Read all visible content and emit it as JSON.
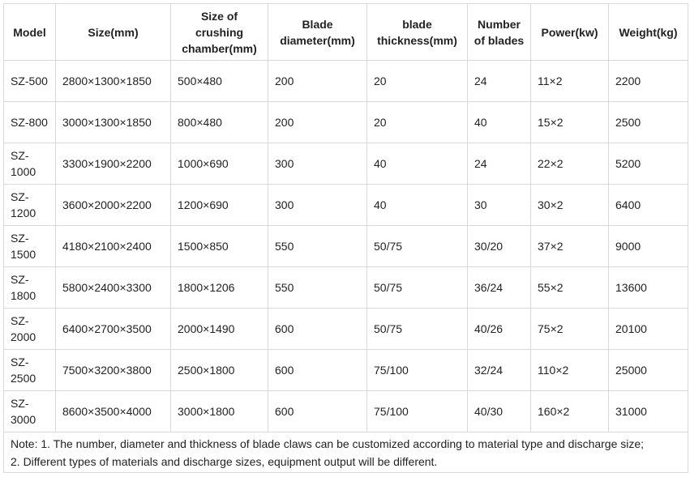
{
  "table": {
    "headers": [
      "Model",
      "Size(mm)",
      "Size of crushing chamber(mm)",
      "Blade diameter(mm)",
      "blade thickness(mm)",
      "Number of blades",
      "Power(kw)",
      "Weight(kg)"
    ],
    "rows": [
      [
        "SZ-500",
        "2800×1300×1850",
        "500×480",
        "200",
        "20",
        "24",
        "11×2",
        "2200"
      ],
      [
        "SZ-800",
        "3000×1300×1850",
        "800×480",
        "200",
        "20",
        "40",
        "15×2",
        "2500"
      ],
      [
        "SZ-1000",
        "3300×1900×2200",
        "1000×690",
        "300",
        "40",
        "24",
        "22×2",
        "5200"
      ],
      [
        "SZ-1200",
        "3600×2000×2200",
        "1200×690",
        "300",
        "40",
        "30",
        "30×2",
        "6400"
      ],
      [
        "SZ-1500",
        "4180×2100×2400",
        "1500×850",
        "550",
        "50/75",
        "30/20",
        "37×2",
        "9000"
      ],
      [
        "SZ-1800",
        "5800×2400×3300",
        "1800×1206",
        "550",
        "50/75",
        "36/24",
        "55×2",
        "13600"
      ],
      [
        "SZ-2000",
        "6400×2700×3500",
        "2000×1490",
        "600",
        "50/75",
        "40/26",
        "75×2",
        "20100"
      ],
      [
        "SZ-2500",
        "7500×3200×3800",
        "2500×1800",
        "600",
        "75/100",
        "32/24",
        "110×2",
        "25000"
      ],
      [
        "SZ-3000",
        "8600×3500×4000",
        "3000×1800",
        "600",
        "75/100",
        "40/30",
        "160×2",
        "31000"
      ]
    ],
    "note": {
      "line1": "Note: 1. The number, diameter and thickness of blade claws can be customized according to material type and discharge size;",
      "line2": "2. Different types of materials and discharge sizes, equipment output will be different."
    }
  }
}
